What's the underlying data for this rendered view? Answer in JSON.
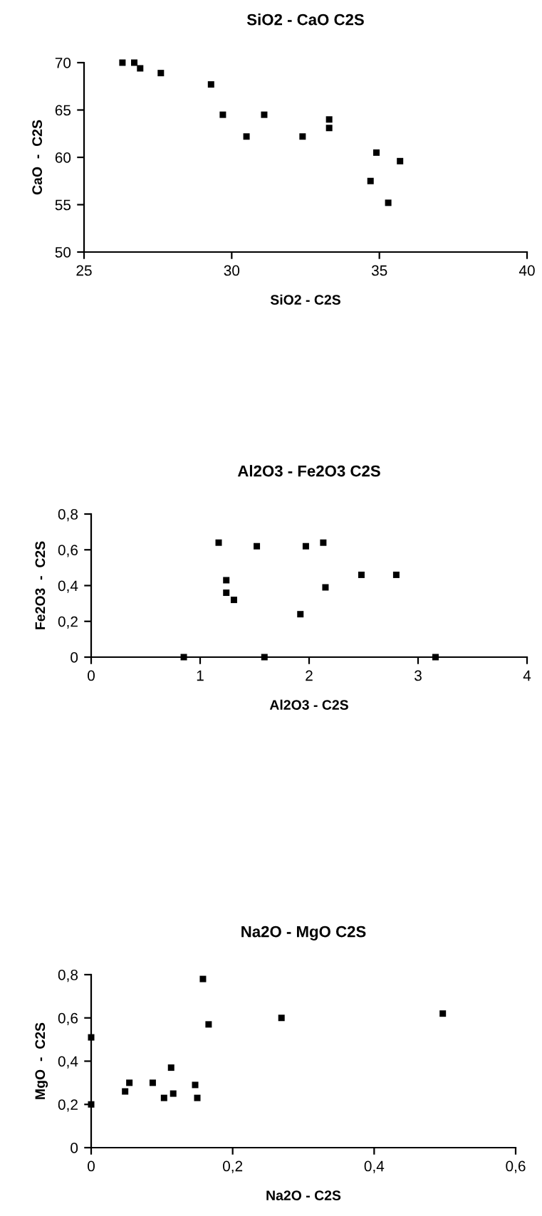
{
  "chart_data": [
    {
      "type": "scatter",
      "title": "SiO2 - CaO C2S",
      "xlabel": "SiO2 - C2S",
      "ylabel": "CaO  -  C2S",
      "marker": "square",
      "color": "#000000",
      "x": [
        26.3,
        26.7,
        26.9,
        27.6,
        29.3,
        29.7,
        30.5,
        31.1,
        32.4,
        33.3,
        33.3,
        34.9,
        34.7,
        35.7,
        35.3
      ],
      "values": [
        70,
        70,
        69.4,
        68.9,
        67.7,
        64.5,
        62.2,
        64.5,
        62.2,
        64.0,
        63.1,
        60.5,
        57.5,
        59.6,
        55.2
      ],
      "xlim": [
        25,
        40
      ],
      "xticks": [
        25,
        30,
        35,
        40
      ],
      "ylim": [
        50,
        70
      ],
      "yticks": [
        50,
        55,
        60,
        65,
        70
      ],
      "grid": false,
      "legend": false
    },
    {
      "type": "scatter",
      "title": "Al2O3 - Fe2O3 C2S",
      "xlabel": "Al2O3 - C2S",
      "ylabel": "Fe2O3  -  C2S",
      "marker": "square",
      "color": "#000000",
      "x": [
        1.17,
        1.52,
        1.97,
        2.13,
        1.24,
        1.24,
        1.31,
        1.92,
        2.15,
        2.48,
        2.8,
        0.85,
        1.59,
        3.16
      ],
      "values": [
        0.64,
        0.62,
        0.62,
        0.64,
        0.43,
        0.36,
        0.32,
        0.24,
        0.39,
        0.46,
        0.46,
        0,
        0,
        0
      ],
      "xlim": [
        0,
        4
      ],
      "xticks": [
        0,
        1,
        2,
        3,
        4
      ],
      "ylim": [
        0,
        0.8
      ],
      "yticks": [
        0,
        {
          "value": 0.2,
          "label": "0,2"
        },
        {
          "value": 0.4,
          "label": "0,4"
        },
        {
          "value": 0.6,
          "label": "0,6"
        },
        {
          "value": 0.8,
          "label": "0,8"
        }
      ],
      "grid": false,
      "legend": false
    },
    {
      "type": "scatter",
      "title": "Na2O - MgO C2S",
      "xlabel": "Na2O - C2S",
      "ylabel": "MgO  -  C2S",
      "marker": "square",
      "color": "#000000",
      "x": [
        0,
        0,
        0.048,
        0.054,
        0.087,
        0.103,
        0.113,
        0.116,
        0.147,
        0.15,
        0.158,
        0.166,
        0.269,
        0.497
      ],
      "values": [
        0.51,
        0.2,
        0.26,
        0.3,
        0.3,
        0.23,
        0.37,
        0.25,
        0.29,
        0.23,
        0.78,
        0.57,
        0.6,
        0.62
      ],
      "xlim": [
        0,
        0.6
      ],
      "xticks": [
        0,
        {
          "value": 0.2,
          "label": "0,2"
        },
        {
          "value": 0.4,
          "label": "0,4"
        },
        {
          "value": 0.6,
          "label": "0,6"
        }
      ],
      "ylim": [
        0,
        0.8
      ],
      "yticks": [
        0,
        {
          "value": 0.2,
          "label": "0,2"
        },
        {
          "value": 0.4,
          "label": "0,4"
        },
        {
          "value": 0.6,
          "label": "0,6"
        },
        {
          "value": 0.8,
          "label": "0,8"
        }
      ],
      "grid": false,
      "legend": false
    }
  ]
}
